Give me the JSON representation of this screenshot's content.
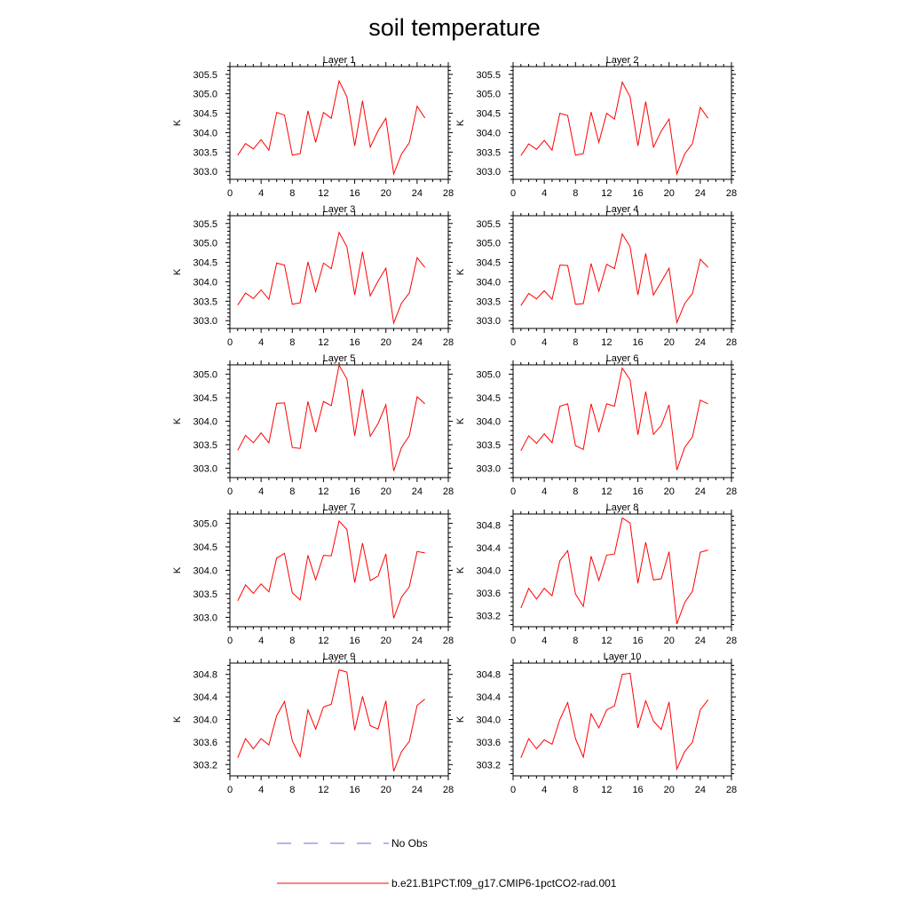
{
  "title": "soil temperature",
  "colors": {
    "model_line": "#ff0000",
    "obs_line": "#6a6ad8",
    "axis": "#000000"
  },
  "legend": {
    "obs_label": "No Obs",
    "model_label": "b.e21.B1PCT.f09_g17.CMIP6-1pctCO2-rad.001"
  },
  "chart_data": [
    {
      "type": "line",
      "title": "Layer 1",
      "ylabel": "K",
      "xlim": [
        0,
        28
      ],
      "ylim": [
        302.8,
        305.7
      ],
      "x_ticks": [
        0,
        4,
        8,
        12,
        16,
        20,
        24,
        28
      ],
      "y_ticks": [
        303.0,
        303.5,
        304.0,
        304.5,
        305.0,
        305.5
      ],
      "y_decimals": 1,
      "series": [
        {
          "name": "b.e21.B1PCT.f09_g17.CMIP6-1pctCO2-rad.001",
          "x": [
            1,
            2,
            3,
            4,
            5,
            6,
            7,
            8,
            9,
            10,
            11,
            12,
            13,
            14,
            15,
            16,
            17,
            18,
            19,
            20,
            21,
            22,
            23,
            24,
            25
          ],
          "y": [
            303.42,
            303.72,
            303.58,
            303.82,
            303.55,
            304.52,
            304.45,
            303.42,
            303.46,
            304.56,
            303.75,
            304.52,
            304.37,
            305.33,
            304.92,
            303.66,
            304.82,
            303.63,
            304.05,
            304.37,
            302.94,
            303.45,
            303.74,
            304.68,
            304.38
          ]
        }
      ]
    },
    {
      "type": "line",
      "title": "Layer 2",
      "ylabel": "K",
      "xlim": [
        0,
        28
      ],
      "ylim": [
        302.8,
        305.7
      ],
      "x_ticks": [
        0,
        4,
        8,
        12,
        16,
        20,
        24,
        28
      ],
      "y_ticks": [
        303.0,
        303.5,
        304.0,
        304.5,
        305.0,
        305.5
      ],
      "y_decimals": 1,
      "series": [
        {
          "name": "b.e21.B1PCT.f09_g17.CMIP6-1pctCO2-rad.001",
          "x": [
            1,
            2,
            3,
            4,
            5,
            6,
            7,
            8,
            9,
            10,
            11,
            12,
            13,
            14,
            15,
            16,
            17,
            18,
            19,
            20,
            21,
            22,
            23,
            24,
            25
          ],
          "y": [
            303.41,
            303.71,
            303.57,
            303.8,
            303.55,
            304.5,
            304.44,
            303.42,
            303.46,
            304.53,
            303.75,
            304.5,
            304.35,
            305.3,
            304.92,
            303.66,
            304.8,
            303.63,
            304.04,
            304.35,
            302.94,
            303.45,
            303.72,
            304.65,
            304.37
          ]
        }
      ]
    },
    {
      "type": "line",
      "title": "Layer 3",
      "ylabel": "K",
      "xlim": [
        0,
        28
      ],
      "ylim": [
        302.8,
        305.7
      ],
      "x_ticks": [
        0,
        4,
        8,
        12,
        16,
        20,
        24,
        28
      ],
      "y_ticks": [
        303.0,
        303.5,
        304.0,
        304.5,
        305.0,
        305.5
      ],
      "y_decimals": 1,
      "series": [
        {
          "name": "b.e21.B1PCT.f09_g17.CMIP6-1pctCO2-rad.001",
          "x": [
            1,
            2,
            3,
            4,
            5,
            6,
            7,
            8,
            9,
            10,
            11,
            12,
            13,
            14,
            15,
            16,
            17,
            18,
            19,
            20,
            21,
            22,
            23,
            24,
            25
          ],
          "y": [
            303.4,
            303.71,
            303.57,
            303.79,
            303.55,
            304.48,
            304.43,
            303.42,
            303.46,
            304.51,
            303.75,
            304.48,
            304.34,
            305.27,
            304.9,
            303.66,
            304.77,
            303.64,
            304.02,
            304.35,
            302.94,
            303.45,
            303.71,
            304.62,
            304.37
          ]
        }
      ]
    },
    {
      "type": "line",
      "title": "Layer 4",
      "ylabel": "K",
      "xlim": [
        0,
        28
      ],
      "ylim": [
        302.8,
        305.7
      ],
      "x_ticks": [
        0,
        4,
        8,
        12,
        16,
        20,
        24,
        28
      ],
      "y_ticks": [
        303.0,
        303.5,
        304.0,
        304.5,
        305.0,
        305.5
      ],
      "y_decimals": 1,
      "series": [
        {
          "name": "b.e21.B1PCT.f09_g17.CMIP6-1pctCO2-rad.001",
          "x": [
            1,
            2,
            3,
            4,
            5,
            6,
            7,
            8,
            9,
            10,
            11,
            12,
            13,
            14,
            15,
            16,
            17,
            18,
            19,
            20,
            21,
            22,
            23,
            24,
            25
          ],
          "y": [
            303.39,
            303.7,
            303.56,
            303.77,
            303.55,
            304.43,
            304.42,
            303.42,
            303.44,
            304.47,
            303.76,
            304.45,
            304.34,
            305.23,
            304.9,
            303.66,
            304.73,
            303.66,
            304.0,
            304.35,
            302.95,
            303.44,
            303.7,
            304.58,
            304.37
          ]
        }
      ]
    },
    {
      "type": "line",
      "title": "Layer 5",
      "ylabel": "K",
      "xlim": [
        0,
        28
      ],
      "ylim": [
        302.8,
        305.2
      ],
      "x_ticks": [
        0,
        4,
        8,
        12,
        16,
        20,
        24,
        28
      ],
      "y_ticks": [
        303.0,
        303.5,
        304.0,
        304.5,
        305.0
      ],
      "y_decimals": 1,
      "series": [
        {
          "name": "b.e21.B1PCT.f09_g17.CMIP6-1pctCO2-rad.001",
          "x": [
            1,
            2,
            3,
            4,
            5,
            6,
            7,
            8,
            9,
            10,
            11,
            12,
            13,
            14,
            15,
            16,
            17,
            18,
            19,
            20,
            21,
            22,
            23,
            24,
            25
          ],
          "y": [
            303.38,
            303.7,
            303.54,
            303.75,
            303.54,
            304.38,
            304.39,
            303.44,
            303.42,
            304.42,
            303.77,
            304.42,
            304.33,
            305.19,
            304.9,
            303.69,
            304.68,
            303.68,
            303.95,
            304.35,
            302.94,
            303.44,
            303.69,
            304.52,
            304.37
          ]
        }
      ]
    },
    {
      "type": "line",
      "title": "Layer 6",
      "ylabel": "K",
      "xlim": [
        0,
        28
      ],
      "ylim": [
        302.8,
        305.2
      ],
      "x_ticks": [
        0,
        4,
        8,
        12,
        16,
        20,
        24,
        28
      ],
      "y_ticks": [
        303.0,
        303.5,
        304.0,
        304.5,
        305.0
      ],
      "y_decimals": 1,
      "series": [
        {
          "name": "b.e21.B1PCT.f09_g17.CMIP6-1pctCO2-rad.001",
          "x": [
            1,
            2,
            3,
            4,
            5,
            6,
            7,
            8,
            9,
            10,
            11,
            12,
            13,
            14,
            15,
            16,
            17,
            18,
            19,
            20,
            21,
            22,
            23,
            24,
            25
          ],
          "y": [
            303.37,
            303.69,
            303.53,
            303.73,
            303.54,
            304.32,
            304.37,
            303.48,
            303.4,
            304.37,
            303.78,
            304.37,
            304.32,
            305.13,
            304.88,
            303.71,
            304.63,
            303.72,
            303.91,
            304.35,
            302.96,
            303.44,
            303.67,
            304.45,
            304.37
          ]
        }
      ]
    },
    {
      "type": "line",
      "title": "Layer 7",
      "ylabel": "K",
      "xlim": [
        0,
        28
      ],
      "ylim": [
        302.8,
        305.2
      ],
      "x_ticks": [
        0,
        4,
        8,
        12,
        16,
        20,
        24,
        28
      ],
      "y_ticks": [
        303.0,
        303.5,
        304.0,
        304.5,
        305.0
      ],
      "y_decimals": 1,
      "series": [
        {
          "name": "b.e21.B1PCT.f09_g17.CMIP6-1pctCO2-rad.001",
          "x": [
            1,
            2,
            3,
            4,
            5,
            6,
            7,
            8,
            9,
            10,
            11,
            12,
            13,
            14,
            15,
            16,
            17,
            18,
            19,
            20,
            21,
            22,
            23,
            24,
            25
          ],
          "y": [
            303.35,
            303.69,
            303.51,
            303.71,
            303.54,
            304.26,
            304.36,
            303.52,
            303.37,
            304.32,
            303.8,
            304.32,
            304.31,
            305.05,
            304.87,
            303.74,
            304.58,
            303.78,
            303.88,
            304.35,
            302.98,
            303.43,
            303.65,
            304.4,
            304.37
          ]
        }
      ]
    },
    {
      "type": "line",
      "title": "Layer 8",
      "ylabel": "K",
      "xlim": [
        0,
        28
      ],
      "ylim": [
        303.0,
        305.0
      ],
      "x_ticks": [
        0,
        4,
        8,
        12,
        16,
        20,
        24,
        28
      ],
      "y_ticks": [
        303.2,
        303.6,
        304.0,
        304.4,
        304.8
      ],
      "y_decimals": 1,
      "series": [
        {
          "name": "b.e21.B1PCT.f09_g17.CMIP6-1pctCO2-rad.001",
          "x": [
            1,
            2,
            3,
            4,
            5,
            6,
            7,
            8,
            9,
            10,
            11,
            12,
            13,
            14,
            15,
            16,
            17,
            18,
            19,
            20,
            21,
            22,
            23,
            24,
            25
          ],
          "y": [
            303.33,
            303.68,
            303.49,
            303.68,
            303.55,
            304.17,
            304.35,
            303.58,
            303.36,
            304.25,
            303.82,
            304.27,
            304.29,
            304.93,
            304.84,
            303.77,
            304.5,
            303.83,
            303.85,
            304.33,
            303.05,
            303.43,
            303.63,
            304.32,
            304.36
          ]
        }
      ]
    },
    {
      "type": "line",
      "title": "Layer 9",
      "ylabel": "K",
      "xlim": [
        0,
        28
      ],
      "ylim": [
        303.0,
        305.0
      ],
      "x_ticks": [
        0,
        4,
        8,
        12,
        16,
        20,
        24,
        28
      ],
      "y_ticks": [
        303.2,
        303.6,
        304.0,
        304.4,
        304.8
      ],
      "y_decimals": 1,
      "series": [
        {
          "name": "b.e21.B1PCT.f09_g17.CMIP6-1pctCO2-rad.001",
          "x": [
            1,
            2,
            3,
            4,
            5,
            6,
            7,
            8,
            9,
            10,
            11,
            12,
            13,
            14,
            15,
            16,
            17,
            18,
            19,
            20,
            21,
            22,
            23,
            24,
            25
          ],
          "y": [
            303.32,
            303.66,
            303.48,
            303.66,
            303.55,
            304.07,
            304.32,
            303.62,
            303.34,
            304.17,
            303.83,
            304.22,
            304.27,
            304.88,
            304.84,
            303.81,
            304.41,
            303.89,
            303.83,
            304.33,
            303.08,
            303.43,
            303.61,
            304.25,
            304.36
          ]
        }
      ]
    },
    {
      "type": "line",
      "title": "Layer 10",
      "ylabel": "K",
      "xlim": [
        0,
        28
      ],
      "ylim": [
        303.0,
        305.0
      ],
      "x_ticks": [
        0,
        4,
        8,
        12,
        16,
        20,
        24,
        28
      ],
      "y_ticks": [
        303.2,
        303.6,
        304.0,
        304.4,
        304.8
      ],
      "y_decimals": 1,
      "series": [
        {
          "name": "b.e21.B1PCT.f09_g17.CMIP6-1pctCO2-rad.001",
          "x": [
            1,
            2,
            3,
            4,
            5,
            6,
            7,
            8,
            9,
            10,
            11,
            12,
            13,
            14,
            15,
            16,
            17,
            18,
            19,
            20,
            21,
            22,
            23,
            24,
            25
          ],
          "y": [
            303.32,
            303.66,
            303.48,
            303.64,
            303.56,
            304.0,
            304.3,
            303.66,
            303.33,
            304.1,
            303.85,
            304.17,
            304.24,
            304.8,
            304.82,
            303.85,
            304.33,
            303.97,
            303.82,
            304.31,
            303.12,
            303.43,
            303.6,
            304.17,
            304.35
          ]
        }
      ]
    }
  ]
}
